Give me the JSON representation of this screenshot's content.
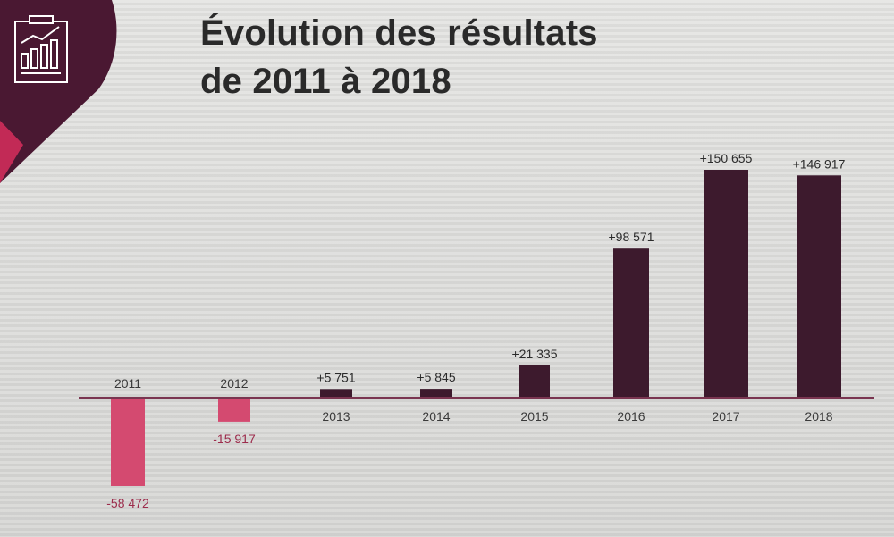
{
  "slide": {
    "title_line1": "Évolution des résultats",
    "title_line2": "de 2011 à 2018"
  },
  "icon": {
    "name": "report-chart-icon"
  },
  "colors": {
    "positive": "#3d1a2d",
    "negative": "#d44a70",
    "badge_dark": "#4a1832",
    "badge_accent": "#c22a56",
    "axis": "#7a3550",
    "text": "#2a2a2a"
  },
  "chart_data": {
    "type": "bar",
    "title": "Évolution des résultats de 2011 à 2018",
    "xlabel": "",
    "ylabel": "",
    "categories": [
      "2011",
      "2012",
      "2013",
      "2014",
      "2015",
      "2016",
      "2017",
      "2018"
    ],
    "values": [
      -58472,
      -15917,
      5751,
      5845,
      21335,
      98571,
      150655,
      146917
    ],
    "data_labels": [
      "-58 472",
      "-15 917",
      "+5 751",
      "+5 845",
      "+21 335",
      "+98 571",
      "+150 655",
      "+146 917"
    ],
    "ylim": [
      -60000,
      155000
    ],
    "grid": false,
    "legend": "none"
  }
}
